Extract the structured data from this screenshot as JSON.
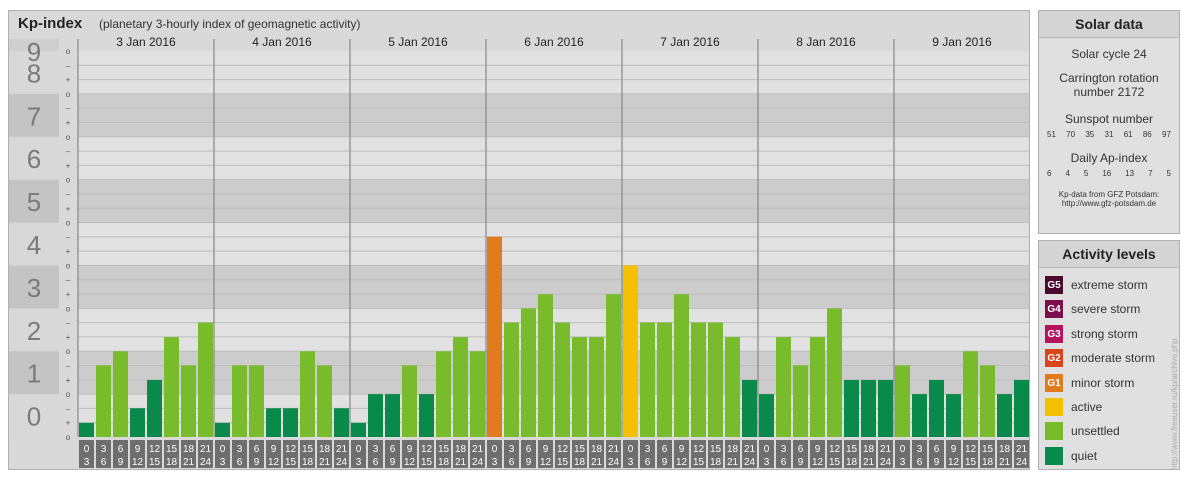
{
  "title": "Kp-index",
  "subtitle": "(planetary 3-hourly index of geomagnetic activity)",
  "colors": {
    "quiet": "#0a8a4a",
    "unsettled": "#78bc2c",
    "active": "#f5c000",
    "minor": "#e07c1e",
    "panel": "#d9d9d9",
    "band_light": "#e1e1e1",
    "band_dark": "#cccccc"
  },
  "chart_data": {
    "type": "bar",
    "title": "Kp-index",
    "subtitle": "(planetary 3-hourly index of geomagnetic activity)",
    "ylim": [
      0,
      9
    ],
    "y_ticks": [
      "0",
      "1",
      "2",
      "3",
      "4",
      "5",
      "6",
      "7",
      "8",
      "9"
    ],
    "y_sub_ticks": [
      "o",
      "+",
      "–"
    ],
    "days": [
      "3 Jan 2016",
      "4 Jan 2016",
      "5 Jan 2016",
      "6 Jan 2016",
      "7 Jan 2016",
      "8 Jan 2016",
      "9 Jan 2016"
    ],
    "hour_starts": [
      "0",
      "3",
      "6",
      "9",
      "12",
      "15",
      "18",
      "21"
    ],
    "hour_ends": [
      "3",
      "6",
      "9",
      "12",
      "15",
      "18",
      "21",
      "24"
    ],
    "values": [
      0.33,
      1.67,
      2.0,
      0.67,
      1.33,
      2.33,
      1.67,
      2.67,
      0.33,
      1.67,
      1.67,
      0.67,
      0.67,
      2.0,
      1.67,
      0.67,
      0.33,
      1.0,
      1.0,
      1.67,
      1.0,
      2.0,
      2.33,
      2.0,
      4.67,
      2.67,
      3.0,
      3.33,
      2.67,
      2.33,
      2.33,
      3.33,
      4.0,
      2.67,
      2.67,
      3.33,
      2.67,
      2.67,
      2.33,
      1.33,
      1.0,
      2.33,
      1.67,
      2.33,
      3.0,
      1.33,
      1.33,
      1.33,
      1.67,
      1.0,
      1.33,
      1.0,
      2.0,
      1.67,
      1.0,
      1.33
    ],
    "levels": [
      "quiet",
      "unsettled",
      "unsettled",
      "quiet",
      "quiet",
      "unsettled",
      "unsettled",
      "unsettled",
      "quiet",
      "unsettled",
      "unsettled",
      "quiet",
      "quiet",
      "unsettled",
      "unsettled",
      "quiet",
      "quiet",
      "quiet",
      "quiet",
      "unsettled",
      "quiet",
      "unsettled",
      "unsettled",
      "unsettled",
      "minor",
      "unsettled",
      "unsettled",
      "unsettled",
      "unsettled",
      "unsettled",
      "unsettled",
      "unsettled",
      "active",
      "unsettled",
      "unsettled",
      "unsettled",
      "unsettled",
      "unsettled",
      "unsettled",
      "quiet",
      "quiet",
      "unsettled",
      "unsettled",
      "unsettled",
      "unsettled",
      "quiet",
      "quiet",
      "quiet",
      "unsettled",
      "quiet",
      "quiet",
      "quiet",
      "unsettled",
      "unsettled",
      "quiet",
      "quiet"
    ]
  },
  "solar": {
    "heading": "Solar data",
    "cycle": "Solar cycle 24",
    "carrington_line1": "Carrington rotation",
    "carrington_line2": "number 2172",
    "sunspot_label": "Sunspot number",
    "sunspot_values": [
      "51",
      "70",
      "35",
      "31",
      "61",
      "86",
      "97"
    ],
    "ap_label": "Daily Ap-index",
    "ap_values": [
      "6",
      "4",
      "5",
      "16",
      "13",
      "7",
      "5"
    ],
    "source_line1": "Kp-data from GFZ Potsdam:",
    "source_line2": "http://www.gfz-potsdam.de"
  },
  "legend": {
    "heading": "Activity levels",
    "items": [
      {
        "code": "G5",
        "label": "extreme storm",
        "color": "#4a0a2c"
      },
      {
        "code": "G4",
        "label": "severe storm",
        "color": "#7a0d4a"
      },
      {
        "code": "G3",
        "label": "strong storm",
        "color": "#b5135e"
      },
      {
        "code": "G2",
        "label": "moderate storm",
        "color": "#d8441c"
      },
      {
        "code": "G1",
        "label": "minor storm",
        "color": "#e07c1e"
      },
      {
        "code": "",
        "label": "active",
        "color": "#f5c000"
      },
      {
        "code": "",
        "label": "unsettled",
        "color": "#78bc2c"
      },
      {
        "code": "",
        "label": "quiet",
        "color": "#0a8a4a"
      }
    ]
  },
  "watermark": "http://www.freeuser.ru/kp/archive.php"
}
